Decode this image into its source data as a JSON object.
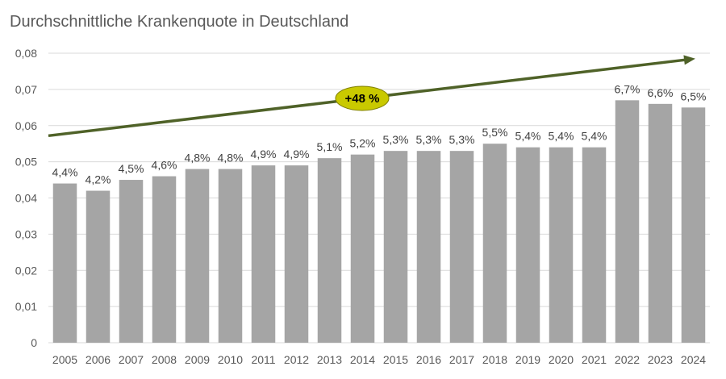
{
  "chart_data": {
    "type": "bar",
    "title": "Durchschnittliche Krankenquote in Deutschland",
    "categories": [
      "2005",
      "2006",
      "2007",
      "2008",
      "2009",
      "2010",
      "2011",
      "2012",
      "2013",
      "2014",
      "2015",
      "2016",
      "2017",
      "2018",
      "2019",
      "2020",
      "2021",
      "2022",
      "2023",
      "2024"
    ],
    "values": [
      0.044,
      0.042,
      0.045,
      0.046,
      0.048,
      0.048,
      0.049,
      0.049,
      0.051,
      0.052,
      0.053,
      0.053,
      0.053,
      0.055,
      0.054,
      0.054,
      0.054,
      0.067,
      0.066,
      0.065
    ],
    "data_labels": [
      "4,4%",
      "4,2%",
      "4,5%",
      "4,6%",
      "4,8%",
      "4,8%",
      "4,9%",
      "4,9%",
      "5,1%",
      "5,2%",
      "5,3%",
      "5,3%",
      "5,3%",
      "5,5%",
      "5,4%",
      "5,4%",
      "5,4%",
      "6,7%",
      "6,6%",
      "6,5%"
    ],
    "ylim": [
      0,
      0.08
    ],
    "yticks": [
      0,
      0.01,
      0.02,
      0.03,
      0.04,
      0.05,
      0.06,
      0.07,
      0.08
    ],
    "ytick_labels": [
      "0",
      "0,01",
      "0,02",
      "0,03",
      "0,04",
      "0,05",
      "0,06",
      "0,07",
      "0,08"
    ],
    "xlabel": "",
    "ylabel": "",
    "grid": true,
    "bar_color": "#a5a5a5",
    "trend": {
      "start_value": 0.0572,
      "end_value": 0.0785,
      "color": "#4f6228",
      "annotation": "+48 %",
      "annotation_bg": "#c9c900"
    }
  }
}
